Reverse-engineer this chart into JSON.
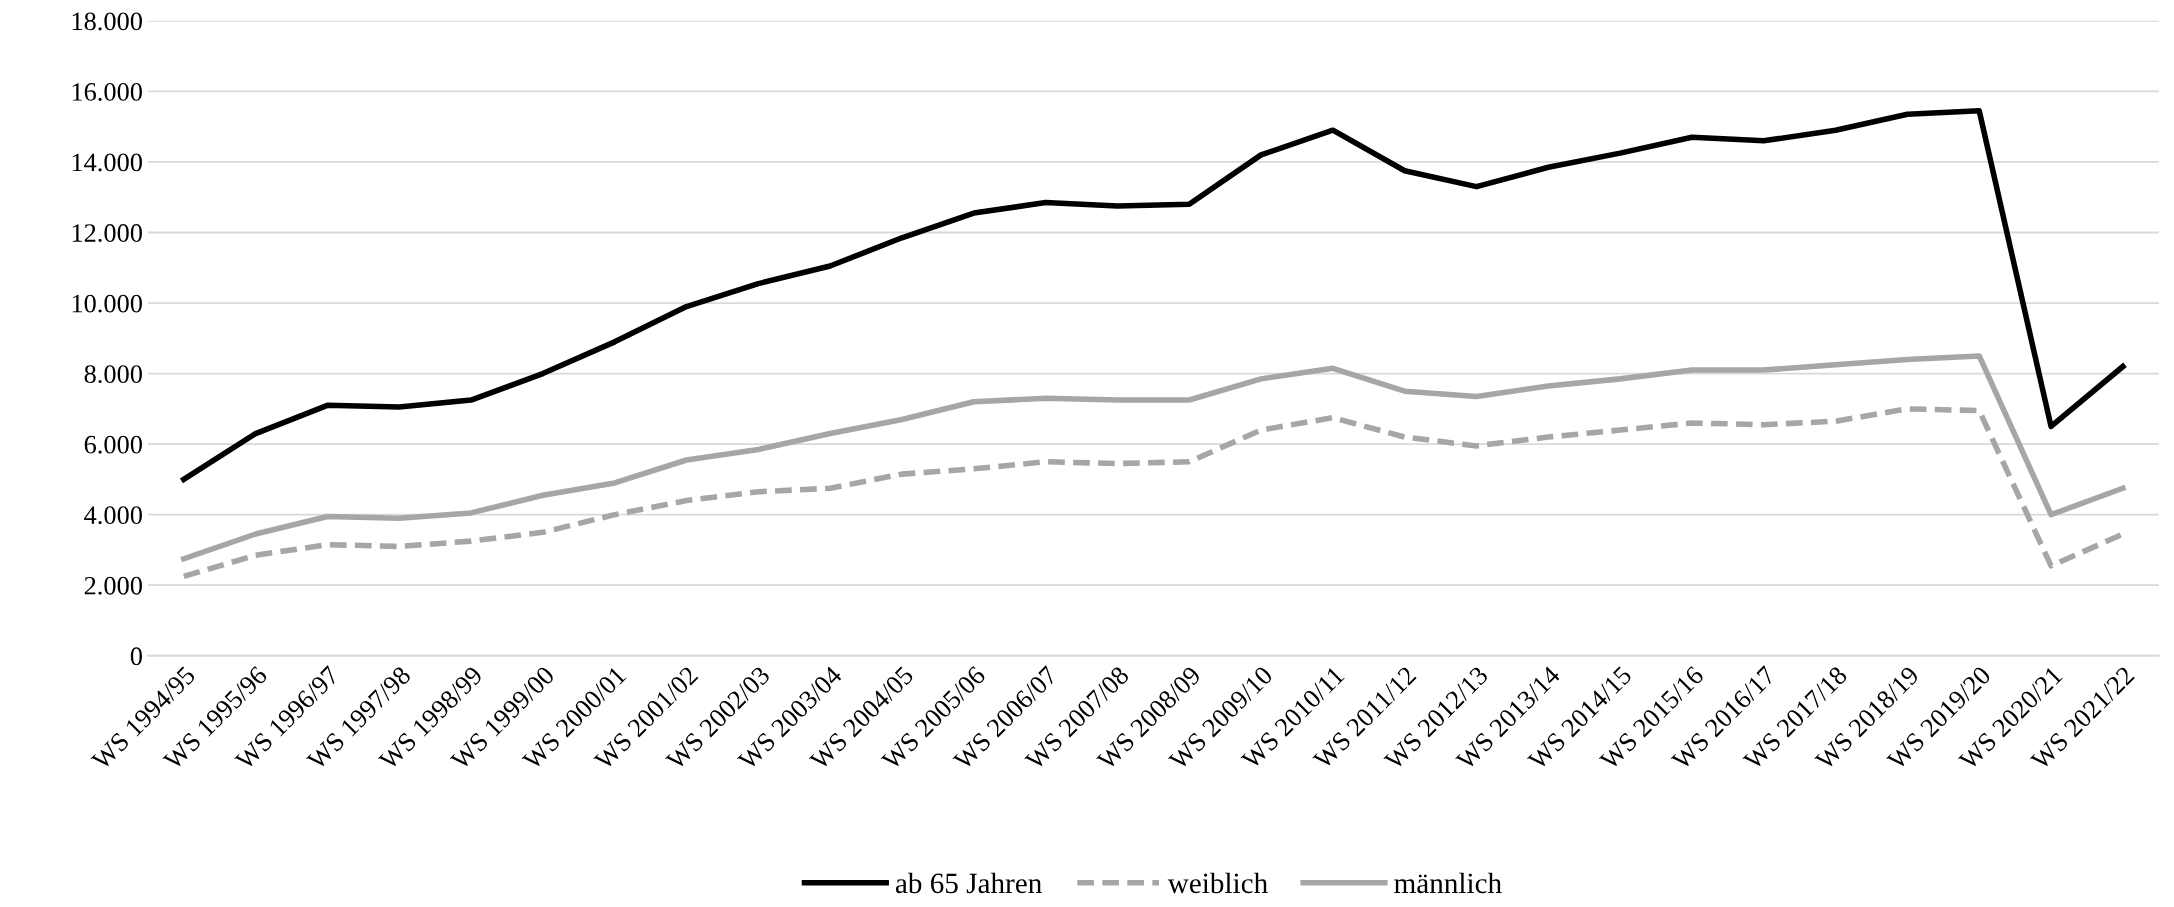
{
  "chart_data": {
    "type": "line",
    "categories": [
      "WS 1994/95",
      "WS 1995/96",
      "WS 1996/97",
      "WS 1997/98",
      "WS 1998/99",
      "WS 1999/00",
      "WS 2000/01",
      "WS 2001/02",
      "WS 2002/03",
      "WS 2003/04",
      "WS 2004/05",
      "WS 2005/06",
      "WS 2006/07",
      "WS 2007/08",
      "WS 2008/09",
      "WS 2009/10",
      "WS 2010/11",
      "WS 2011/12",
      "WS 2012/13",
      "WS 2013/14",
      "WS 2014/15",
      "WS 2015/16",
      "WS 2016/17",
      "WS 2017/18",
      "WS 2018/19",
      "WS 2019/20",
      "WS 2020/21",
      "WS 2021/22"
    ],
    "series": [
      {
        "name": "ab 65 Jahren",
        "color": "#000000",
        "line_style": "solid",
        "values": [
          5000,
          6300,
          7100,
          7050,
          7250,
          8000,
          8900,
          9900,
          10550,
          11050,
          11850,
          12550,
          12850,
          12750,
          12800,
          14200,
          14900,
          13750,
          13300,
          13850,
          14250,
          14700,
          14600,
          14900,
          15350,
          15450,
          6500,
          8200
        ]
      },
      {
        "name": "weiblich",
        "color": "#a6a6a6",
        "line_style": "dashed",
        "values": [
          2250,
          2850,
          3150,
          3100,
          3250,
          3500,
          4000,
          4400,
          4650,
          4750,
          5150,
          5300,
          5500,
          5450,
          5500,
          6400,
          6750,
          6200,
          5950,
          6200,
          6400,
          6600,
          6550,
          6650,
          7000,
          6950,
          2550,
          3450
        ]
      },
      {
        "name": "männlich",
        "color": "#a6a6a6",
        "line_style": "solid",
        "values": [
          2750,
          3450,
          3950,
          3900,
          4050,
          4550,
          4900,
          5550,
          5850,
          6300,
          6700,
          7200,
          7300,
          7250,
          7250,
          7850,
          8150,
          7500,
          7350,
          7650,
          7850,
          8100,
          8100,
          8250,
          8400,
          8500,
          4000,
          4750
        ]
      }
    ],
    "ylim": [
      0,
      18000
    ],
    "yticks": [
      {
        "value": 0,
        "label": "0"
      },
      {
        "value": 2000,
        "label": "2.000"
      },
      {
        "value": 4000,
        "label": "4.000"
      },
      {
        "value": 6000,
        "label": "6.000"
      },
      {
        "value": 8000,
        "label": "8.000"
      },
      {
        "value": 10000,
        "label": "10.000"
      },
      {
        "value": 12000,
        "label": "12.000"
      },
      {
        "value": 14000,
        "label": "14.000"
      },
      {
        "value": 16000,
        "label": "16.000"
      },
      {
        "value": 18000,
        "label": "18.000"
      }
    ],
    "grid": "y",
    "legend": "bottom",
    "marker": "none"
  }
}
